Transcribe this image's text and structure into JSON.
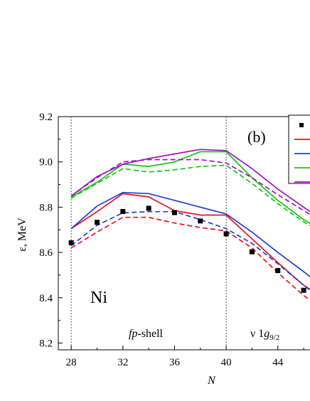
{
  "chart_data": {
    "type": "line",
    "panel_label": "(b)",
    "nucleus_label": "Ni",
    "xlabel": "N",
    "ylabel": "ε, MeV",
    "xlim": [
      27,
      46.6
    ],
    "ylim": [
      8.17,
      9.2
    ],
    "x_ticks": [
      "28",
      "32",
      "36",
      "40",
      "44"
    ],
    "y_ticks": [
      "8.2",
      "8.4",
      "8.6",
      "8.8",
      "9.0",
      "9.2"
    ],
    "region_labels": {
      "fp_prefix": "fp",
      "fp_suffix": "-shell",
      "nu_prefix": "ν 1",
      "nu_g": "g",
      "nu_sub": "9/2"
    },
    "shell_closures": [
      28,
      40
    ],
    "experiment": {
      "x": [
        28,
        30,
        32,
        34,
        36,
        38,
        40,
        42,
        44,
        46
      ],
      "y": [
        8.643,
        8.733,
        8.781,
        8.795,
        8.776,
        8.739,
        8.682,
        8.603,
        8.52,
        8.433
      ]
    },
    "series": [
      {
        "color": "#e8141b",
        "dash": false,
        "x": [
          28,
          30,
          32,
          34,
          36,
          38,
          40,
          42,
          44,
          46,
          47
        ],
        "y": [
          8.705,
          8.78,
          8.86,
          8.845,
          8.785,
          8.765,
          8.765,
          8.66,
          8.555,
          8.455,
          8.42
        ]
      },
      {
        "color": "#e8141b",
        "dash": true,
        "x": [
          28,
          30,
          32,
          34,
          36,
          38,
          40,
          42,
          44,
          46,
          47
        ],
        "y": [
          8.62,
          8.69,
          8.755,
          8.755,
          8.73,
          8.71,
          8.695,
          8.62,
          8.51,
          8.41,
          8.37
        ]
      },
      {
        "color": "#1f3fd4",
        "dash": false,
        "x": [
          28,
          30,
          32,
          34,
          36,
          38,
          40,
          42,
          44,
          46,
          47
        ],
        "y": [
          8.705,
          8.805,
          8.865,
          8.86,
          8.83,
          8.8,
          8.77,
          8.69,
          8.6,
          8.515,
          8.47
        ]
      },
      {
        "color": "#1f3fd4",
        "dash": true,
        "x": [
          28,
          30,
          32,
          34,
          36,
          38,
          40,
          42,
          44,
          46,
          47
        ],
        "y": [
          8.63,
          8.72,
          8.775,
          8.78,
          8.78,
          8.745,
          8.705,
          8.64,
          8.55,
          8.455,
          8.41
        ]
      },
      {
        "color": "#19c414",
        "dash": false,
        "x": [
          28,
          30,
          32,
          34,
          36,
          38,
          40,
          42,
          44,
          46,
          47
        ],
        "y": [
          8.845,
          8.91,
          8.99,
          8.98,
          9.0,
          9.045,
          9.045,
          8.93,
          8.83,
          8.745,
          8.71
        ]
      },
      {
        "color": "#19c414",
        "dash": true,
        "x": [
          28,
          30,
          32,
          34,
          36,
          38,
          40,
          42,
          44,
          46,
          47
        ],
        "y": [
          8.84,
          8.905,
          8.97,
          8.955,
          8.965,
          8.98,
          8.985,
          8.905,
          8.815,
          8.735,
          8.7
        ]
      },
      {
        "color": "#9b14c4",
        "dash": false,
        "x": [
          28,
          30,
          32,
          34,
          36,
          38,
          40,
          42,
          44,
          46,
          47
        ],
        "y": [
          8.85,
          8.935,
          8.99,
          9.015,
          9.035,
          9.055,
          9.05,
          8.97,
          8.88,
          8.8,
          8.76
        ]
      },
      {
        "color": "#9b14c4",
        "dash": true,
        "x": [
          28,
          30,
          32,
          34,
          36,
          38,
          40,
          42,
          44,
          46,
          47
        ],
        "y": [
          8.85,
          8.93,
          9.0,
          9.01,
          9.01,
          9.01,
          8.995,
          8.93,
          8.855,
          8.785,
          8.75
        ]
      }
    ],
    "legend": {
      "placement": "top-right",
      "entries": [
        {
          "type": "marker",
          "color": "#000000"
        },
        {
          "type": "line",
          "color": "#e8141b"
        },
        {
          "type": "line",
          "color": "#1f3fd4"
        },
        {
          "type": "line",
          "color": "#19c414"
        },
        {
          "type": "line",
          "color": "#9b14c4"
        }
      ]
    }
  }
}
